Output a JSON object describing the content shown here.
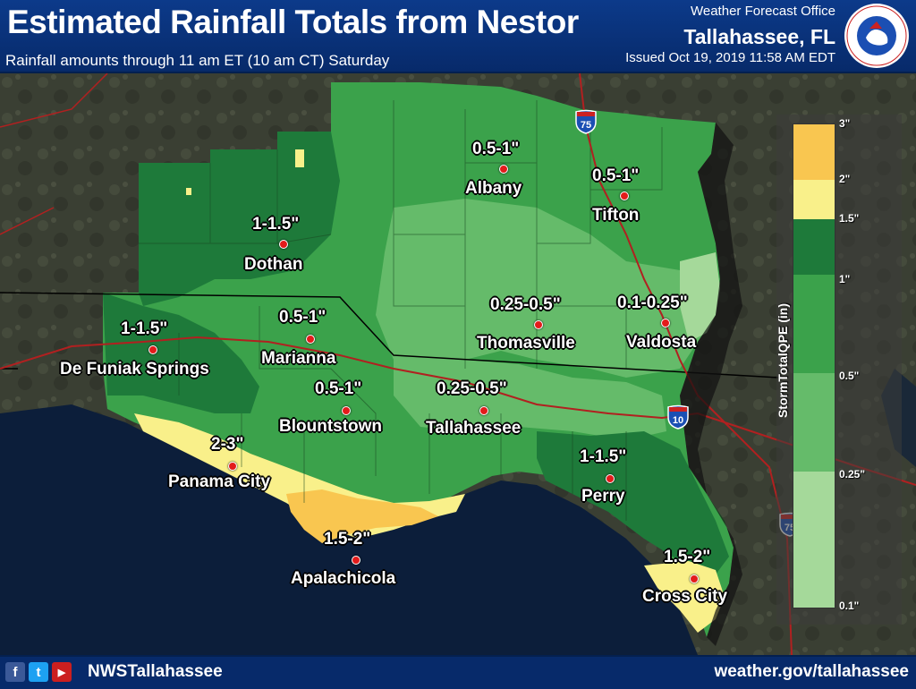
{
  "header": {
    "title": "Estimated Rainfall Totals from Nestor",
    "subtitle": "Rainfall amounts through 11 am ET (10 am CT) Saturday",
    "wfo_label": "Weather Forecast Office",
    "office": "Tallahassee, FL",
    "issued": "Issued Oct 19, 2019 11:58 AM EDT",
    "logo_text": "NATIONAL WEATHER SERVICE"
  },
  "legend": {
    "title": "StormTotalQPE (in)",
    "ticks": [
      "3\"",
      "2\"",
      "1.5\"",
      "1\"",
      "0.5\"",
      "0.25\"",
      "0.1\""
    ],
    "colors": [
      "#f9c650",
      "#f9f08a",
      "#1e7a3a",
      "#3ba24b",
      "#65bb6a",
      "#a5d99a"
    ]
  },
  "locations": [
    {
      "city": "Albany",
      "amount": "0.5-1\""
    },
    {
      "city": "Tifton",
      "amount": "0.5-1\""
    },
    {
      "city": "Dothan",
      "amount": "1-1.5\""
    },
    {
      "city": "Thomasville",
      "amount": "0.25-0.5\""
    },
    {
      "city": "Valdosta",
      "amount": "0.1-0.25\""
    },
    {
      "city": "De Funiak Springs",
      "amount": "1-1.5\""
    },
    {
      "city": "Marianna",
      "amount": "0.5-1\""
    },
    {
      "city": "Blountstown",
      "amount": "0.5-1\""
    },
    {
      "city": "Tallahassee",
      "amount": "0.25-0.5\""
    },
    {
      "city": "Panama City",
      "amount": "2-3\""
    },
    {
      "city": "Perry",
      "amount": "1-1.5\""
    },
    {
      "city": "Apalachicola",
      "amount": "1.5-2\""
    },
    {
      "city": "Cross City",
      "amount": "1.5-2\""
    }
  ],
  "highways": {
    "i75": "75",
    "i10": "10",
    "i75_south": "75"
  },
  "footer": {
    "social_handle": "NWSTallahassee",
    "url": "weather.gov/tallahassee",
    "icons": [
      "facebook-icon",
      "twitter-icon",
      "youtube-icon"
    ]
  }
}
